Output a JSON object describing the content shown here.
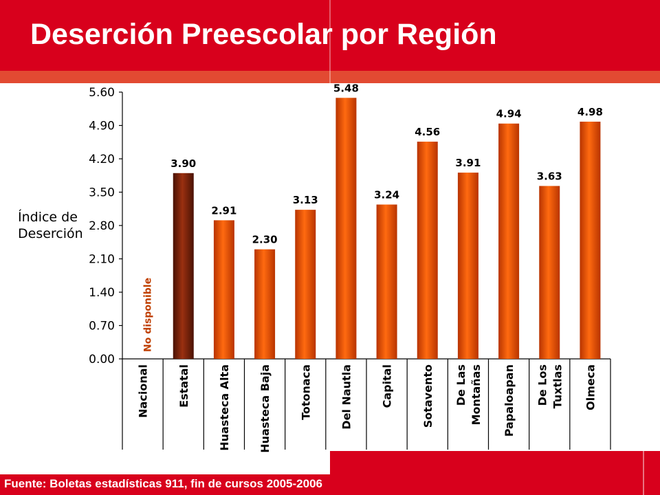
{
  "slide": {
    "title": "Deserción Preescolar por Región",
    "source": "Fuente: Boletas estadísticas 911, fin de cursos 2005-2006"
  },
  "colors": {
    "header_red": "#d8001c",
    "stripe_red": "#e24a32",
    "bar_orange": "#e84e08",
    "bar_highlight": "#7a2208",
    "annotation_text": "#c04000"
  },
  "chart_data": {
    "type": "bar",
    "title": "",
    "ylabel": "Índice de\nDeserción",
    "xlabel": "",
    "ylim": [
      0,
      5.6
    ],
    "yticks": [
      "0.00",
      "0.70",
      "1.40",
      "2.10",
      "2.80",
      "3.50",
      "4.20",
      "4.90",
      "5.60"
    ],
    "categories": [
      "Nacional",
      "Estatal",
      "Huasteca Alta",
      "Huasteca Baja",
      "Totonaca",
      "Del Nautla",
      "Capital",
      "Sotavento",
      "De Las\nMontañas",
      "Papaloapan",
      "De Los\nTuxtlas",
      "Olmeca"
    ],
    "values": [
      null,
      3.9,
      2.91,
      2.3,
      3.13,
      5.48,
      3.24,
      4.56,
      3.91,
      4.94,
      3.63,
      4.98
    ],
    "value_labels": [
      "",
      "3.90",
      "2.91",
      "2.30",
      "3.13",
      "5.48",
      "3.24",
      "4.56",
      "3.91",
      "4.94",
      "3.63",
      "4.98"
    ],
    "highlight_category": "Estatal",
    "annotation": "No disponible",
    "grid": false,
    "legend": "none"
  }
}
